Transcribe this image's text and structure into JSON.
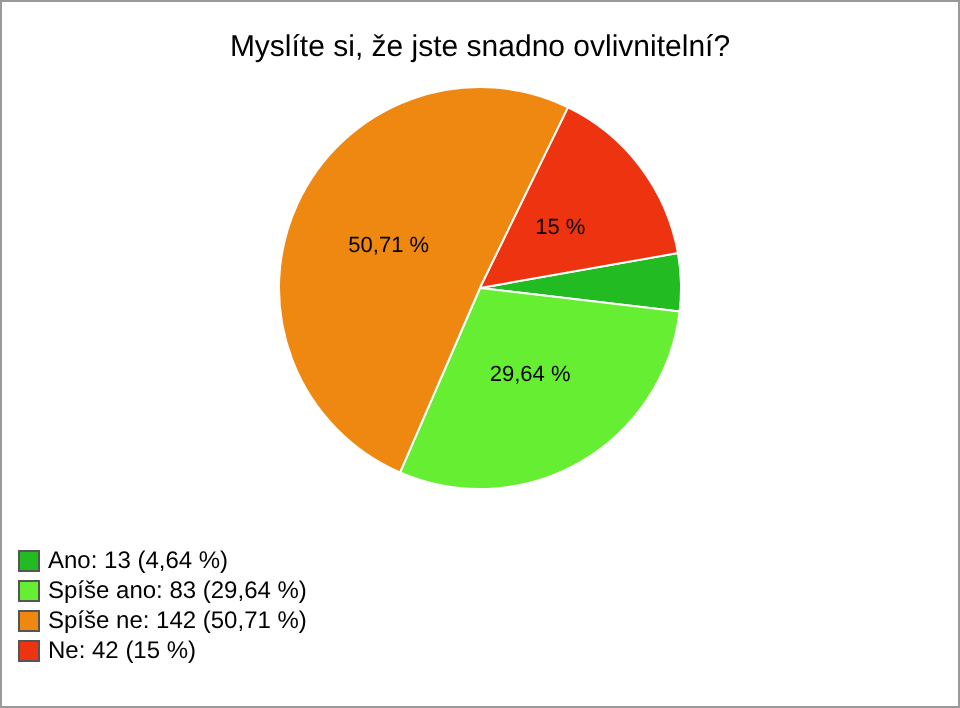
{
  "chart_data": {
    "type": "pie",
    "title": "Myslíte si, že jste snadno ovlivnitelní?",
    "categories": [
      "Ano: 13 (4,64 %)",
      "Spíše ano: 83 (29,64 %)",
      "Spíše ne: 142 (50,71 %)",
      "Ne: 42 (15 %)"
    ],
    "values": [
      4.64,
      29.64,
      50.71,
      15
    ],
    "value_labels": [
      null,
      "29,64 %",
      "50,71 %",
      "15 %"
    ],
    "colors": [
      "#22bb22",
      "#66ee33",
      "#ee8811",
      "#ee3311"
    ],
    "legend": "bottom left"
  }
}
